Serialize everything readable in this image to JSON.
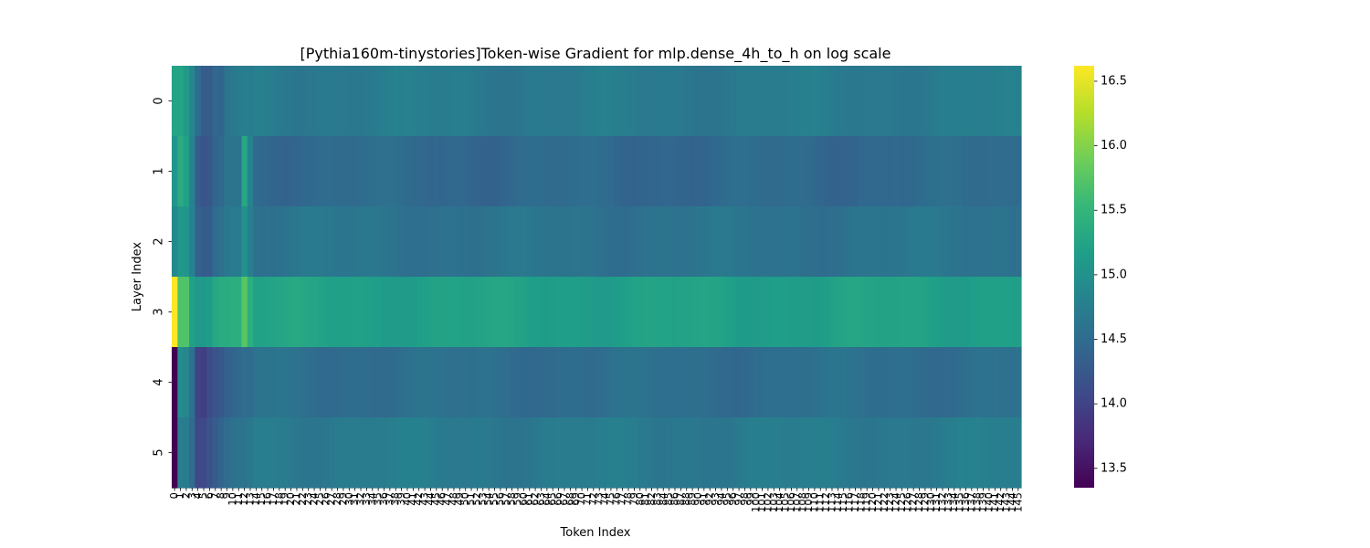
{
  "chart_data": {
    "type": "heatmap",
    "title": "[Pythia160m-tinystories]Token-wise Gradient for mlp.dense_4h_to_h on log scale",
    "xlabel": "Token Index",
    "ylabel": "Layer Index",
    "rows": [
      "0",
      "1",
      "2",
      "3",
      "4",
      "5"
    ],
    "num_columns": 146,
    "x_tick_labels": [
      "0",
      "1",
      "2",
      "3",
      "4",
      "5",
      "6",
      "7",
      "8",
      "9",
      "10",
      "11",
      "12",
      "13",
      "14",
      "15",
      "16",
      "17",
      "18",
      "19",
      "20",
      "21",
      "22",
      "23",
      "24",
      "25",
      "26",
      "27",
      "28",
      "29",
      "30",
      "31",
      "32",
      "33",
      "34",
      "35",
      "36",
      "37",
      "38",
      "39",
      "40",
      "41",
      "42",
      "43",
      "44",
      "45",
      "46",
      "47",
      "48",
      "49",
      "50",
      "51",
      "52",
      "53",
      "54",
      "55",
      "56",
      "57",
      "58",
      "59",
      "60",
      "61",
      "62",
      "63",
      "64",
      "65",
      "66",
      "67",
      "68",
      "69",
      "70",
      "71",
      "72",
      "73",
      "74",
      "75",
      "76",
      "77",
      "78",
      "79",
      "80",
      "81",
      "82",
      "83",
      "84",
      "85",
      "86",
      "87",
      "88",
      "89",
      "90",
      "91",
      "92",
      "93",
      "94",
      "95",
      "96",
      "97",
      "98",
      "99",
      "100",
      "101",
      "102",
      "103",
      "104",
      "105",
      "106",
      "107",
      "108",
      "109",
      "110",
      "111",
      "112",
      "113",
      "114",
      "115",
      "116",
      "117",
      "118",
      "119",
      "120",
      "121",
      "122",
      "123",
      "124",
      "125",
      "126",
      "127",
      "128",
      "129",
      "130",
      "131",
      "132",
      "133",
      "134",
      "135",
      "136",
      "137",
      "138",
      "139",
      "140",
      "141",
      "142",
      "143",
      "144",
      "145"
    ],
    "value_range": [
      13.35,
      16.62
    ],
    "colormap": "viridis",
    "colorbar_ticks": [
      "13.5",
      "14.0",
      "14.5",
      "15.0",
      "15.5",
      "16.0",
      "16.5"
    ],
    "row_profiles": [
      {
        "head": [
          15.25,
          15.25,
          15.1,
          14.85,
          14.5,
          14.3,
          14.3,
          14.45,
          14.4,
          14.6,
          14.65,
          14.7,
          14.75,
          14.7
        ],
        "base": 14.72
      },
      {
        "head": [
          15.05,
          15.35,
          15.2,
          14.8,
          14.3,
          14.2,
          14.25,
          14.4,
          14.45,
          14.6,
          14.6,
          14.6,
          15.3,
          14.8
        ],
        "base": 14.48
      },
      {
        "head": [
          14.9,
          15.1,
          15.05,
          14.8,
          14.35,
          14.3,
          14.3,
          14.5,
          14.55,
          14.65,
          14.7,
          14.7,
          15.0,
          14.75
        ],
        "base": 14.62
      },
      {
        "head": [
          16.62,
          15.7,
          15.7,
          15.2,
          15.1,
          15.1,
          15.15,
          15.3,
          15.35,
          15.35,
          15.4,
          15.4,
          15.75,
          15.4
        ],
        "base": 15.22
      },
      {
        "head": [
          13.35,
          14.95,
          14.85,
          14.55,
          14.0,
          13.95,
          14.1,
          14.2,
          14.25,
          14.35,
          14.4,
          14.45,
          14.5,
          14.5
        ],
        "base": 14.55
      },
      {
        "head": [
          13.35,
          14.75,
          14.7,
          14.5,
          14.05,
          14.05,
          14.2,
          14.3,
          14.4,
          14.5,
          14.55,
          14.6,
          14.6,
          14.65
        ],
        "base": 14.72
      }
    ]
  },
  "colors": {
    "viridis_stops": [
      "#440154",
      "#482878",
      "#3e4a89",
      "#31688e",
      "#26828e",
      "#1f9e89",
      "#35b779",
      "#6ece58",
      "#b5de2b",
      "#fde725"
    ]
  }
}
